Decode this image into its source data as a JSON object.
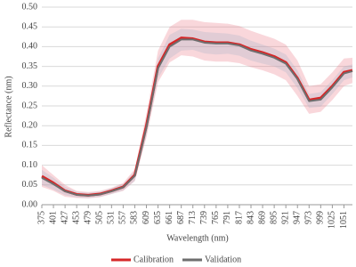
{
  "chart_data": {
    "type": "line",
    "x_label": "Wavelength (nm)",
    "y_label": "Reflectance (nm)",
    "x": [
      375,
      401,
      427,
      453,
      479,
      505,
      531,
      557,
      583,
      609,
      635,
      661,
      687,
      713,
      739,
      765,
      791,
      817,
      843,
      869,
      895,
      921,
      947,
      973,
      999,
      1025,
      1051,
      1070
    ],
    "series": [
      {
        "name": "Calibration",
        "color": "#d62728",
        "band_color": "rgba(232,110,125,0.28)",
        "values": [
          0.072,
          0.055,
          0.035,
          0.026,
          0.024,
          0.027,
          0.035,
          0.045,
          0.075,
          0.2,
          0.35,
          0.405,
          0.422,
          0.42,
          0.412,
          0.41,
          0.41,
          0.405,
          0.393,
          0.385,
          0.375,
          0.36,
          0.32,
          0.265,
          0.27,
          0.3,
          0.335,
          0.34
        ],
        "upper": [
          0.1,
          0.075,
          0.05,
          0.035,
          0.032,
          0.035,
          0.043,
          0.055,
          0.09,
          0.23,
          0.39,
          0.45,
          0.468,
          0.468,
          0.462,
          0.46,
          0.458,
          0.452,
          0.44,
          0.43,
          0.42,
          0.405,
          0.365,
          0.3,
          0.305,
          0.335,
          0.37,
          0.372
        ],
        "lower": [
          0.045,
          0.035,
          0.02,
          0.017,
          0.016,
          0.019,
          0.027,
          0.035,
          0.06,
          0.17,
          0.31,
          0.36,
          0.378,
          0.375,
          0.365,
          0.362,
          0.362,
          0.358,
          0.348,
          0.34,
          0.33,
          0.315,
          0.275,
          0.23,
          0.235,
          0.265,
          0.3,
          0.308
        ]
      },
      {
        "name": "Validation",
        "color": "#6e6e6e",
        "band_color": "rgba(170,180,200,0.3)",
        "values": [
          0.068,
          0.052,
          0.034,
          0.025,
          0.023,
          0.026,
          0.034,
          0.044,
          0.073,
          0.195,
          0.345,
          0.4,
          0.418,
          0.418,
          0.41,
          0.408,
          0.408,
          0.403,
          0.39,
          0.382,
          0.372,
          0.357,
          0.318,
          0.262,
          0.266,
          0.297,
          0.332,
          0.338
        ],
        "upper": [
          0.088,
          0.068,
          0.045,
          0.033,
          0.03,
          0.033,
          0.042,
          0.052,
          0.085,
          0.215,
          0.37,
          0.43,
          0.445,
          0.443,
          0.437,
          0.435,
          0.433,
          0.428,
          0.415,
          0.405,
          0.395,
          0.38,
          0.34,
          0.28,
          0.285,
          0.315,
          0.35,
          0.355
        ],
        "lower": [
          0.05,
          0.038,
          0.024,
          0.018,
          0.017,
          0.02,
          0.027,
          0.036,
          0.06,
          0.175,
          0.32,
          0.37,
          0.39,
          0.392,
          0.383,
          0.38,
          0.382,
          0.377,
          0.365,
          0.357,
          0.35,
          0.335,
          0.295,
          0.245,
          0.248,
          0.28,
          0.315,
          0.322
        ]
      }
    ],
    "xlim": [
      375,
      1070
    ],
    "xticks": [
      375,
      401,
      427,
      453,
      479,
      505,
      531,
      557,
      583,
      609,
      635,
      661,
      687,
      713,
      739,
      765,
      791,
      817,
      843,
      869,
      895,
      921,
      947,
      973,
      999,
      1025,
      1051
    ],
    "ylim": [
      0,
      0.5
    ],
    "yticks": [
      {
        "value": 0,
        "label": "0.00"
      },
      {
        "value": 0.05,
        "label": "0.05"
      },
      {
        "value": 0.1,
        "label": "0.10"
      },
      {
        "value": 0.15,
        "label": "0.15"
      },
      {
        "value": 0.2,
        "label": "0.20"
      },
      {
        "value": 0.25,
        "label": "0.25"
      },
      {
        "value": 0.3,
        "label": "0.30"
      },
      {
        "value": 0.35,
        "label": "0.35"
      },
      {
        "value": 0.4,
        "label": "0.40"
      },
      {
        "value": 0.45,
        "label": "0.45"
      },
      {
        "value": 0.5,
        "label": "0.50"
      }
    ],
    "grid": true,
    "legend": "bottom"
  }
}
